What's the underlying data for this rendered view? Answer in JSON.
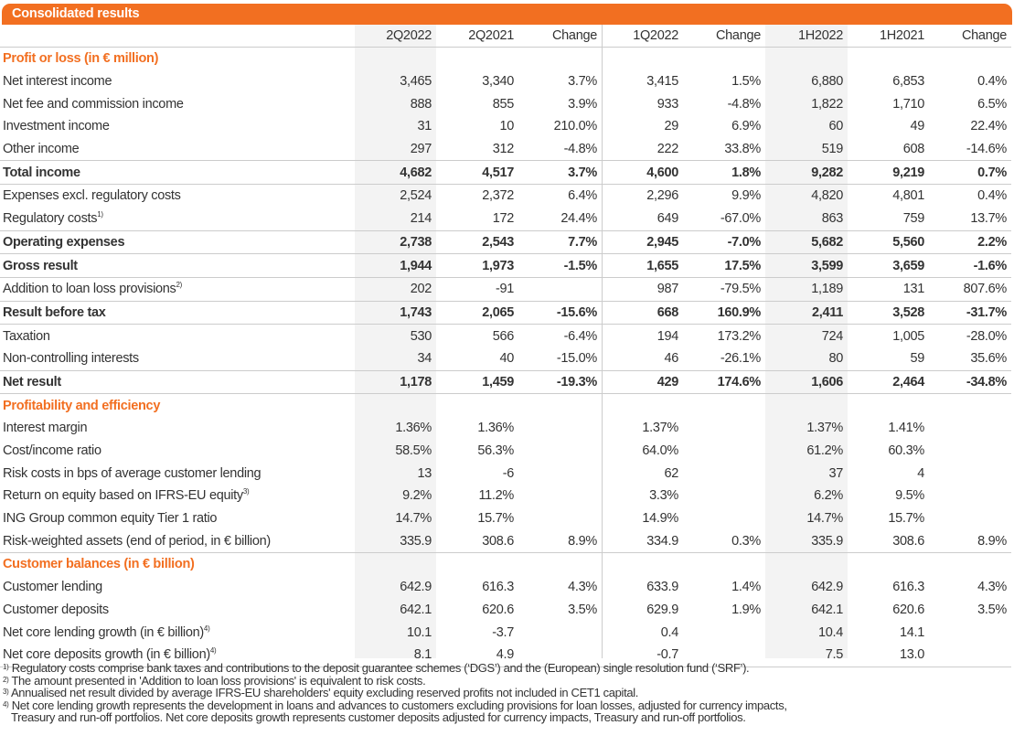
{
  "title": "Consolidated results",
  "columns": [
    "2Q2022",
    "2Q2021",
    "Change",
    "1Q2022",
    "Change",
    "1H2022",
    "1H2021",
    "Change"
  ],
  "sections": [
    {
      "title": "Profit or loss (in € million)",
      "rows": [
        {
          "label": "Net interest income",
          "values": [
            "3,465",
            "3,340",
            "3.7%",
            "3,415",
            "1.5%",
            "6,880",
            "6,853",
            "0.4%"
          ]
        },
        {
          "label": "Net fee and commission income",
          "values": [
            "888",
            "855",
            "3.9%",
            "933",
            "-4.8%",
            "1,822",
            "1,710",
            "6.5%"
          ]
        },
        {
          "label": "Investment income",
          "values": [
            "31",
            "10",
            "210.0%",
            "29",
            "6.9%",
            "60",
            "49",
            "22.4%"
          ]
        },
        {
          "label": "Other income",
          "values": [
            "297",
            "312",
            "-4.8%",
            "222",
            "33.8%",
            "519",
            "608",
            "-14.6%"
          ]
        },
        {
          "label": "Total income",
          "values": [
            "4,682",
            "4,517",
            "3.7%",
            "4,600",
            "1.8%",
            "9,282",
            "9,219",
            "0.7%"
          ]
        },
        {
          "label": "Expenses excl. regulatory costs",
          "values": [
            "2,524",
            "2,372",
            "6.4%",
            "2,296",
            "9.9%",
            "4,820",
            "4,801",
            "0.4%"
          ]
        },
        {
          "label": "Regulatory costs",
          "note": "1)",
          "values": [
            "214",
            "172",
            "24.4%",
            "649",
            "-67.0%",
            "863",
            "759",
            "13.7%"
          ]
        },
        {
          "label": "Operating expenses",
          "values": [
            "2,738",
            "2,543",
            "7.7%",
            "2,945",
            "-7.0%",
            "5,682",
            "5,560",
            "2.2%"
          ]
        },
        {
          "label": "Gross result",
          "values": [
            "1,944",
            "1,973",
            "-1.5%",
            "1,655",
            "17.5%",
            "3,599",
            "3,659",
            "-1.6%"
          ]
        },
        {
          "label": "Addition to loan loss provisions",
          "note": "2)",
          "values": [
            "202",
            "-91",
            "",
            "987",
            "-79.5%",
            "1,189",
            "131",
            "807.6%"
          ]
        },
        {
          "label": "Result before tax",
          "values": [
            "1,743",
            "2,065",
            "-15.6%",
            "668",
            "160.9%",
            "2,411",
            "3,528",
            "-31.7%"
          ]
        },
        {
          "label": "Taxation",
          "values": [
            "530",
            "566",
            "-6.4%",
            "194",
            "173.2%",
            "724",
            "1,005",
            "-28.0%"
          ]
        },
        {
          "label": "Non-controlling interests",
          "values": [
            "34",
            "40",
            "-15.0%",
            "46",
            "-26.1%",
            "80",
            "59",
            "35.6%"
          ]
        },
        {
          "label": "Net result",
          "values": [
            "1,178",
            "1,459",
            "-19.3%",
            "429",
            "174.6%",
            "1,606",
            "2,464",
            "-34.8%"
          ]
        }
      ]
    },
    {
      "title": "Profitability and efficiency",
      "rows": [
        {
          "label": "Interest margin",
          "values": [
            "1.36%",
            "1.36%",
            "",
            "1.37%",
            "",
            "1.37%",
            "1.41%",
            ""
          ]
        },
        {
          "label": "Cost/income ratio",
          "values": [
            "58.5%",
            "56.3%",
            "",
            "64.0%",
            "",
            "61.2%",
            "60.3%",
            ""
          ]
        },
        {
          "label": "Risk costs in bps of average customer lending",
          "values": [
            "13",
            "-6",
            "",
            "62",
            "",
            "37",
            "4",
            ""
          ]
        },
        {
          "label": "Return on equity based on IFRS-EU equity",
          "note": "3)",
          "values": [
            "9.2%",
            "11.2%",
            "",
            "3.3%",
            "",
            "6.2%",
            "9.5%",
            ""
          ]
        },
        {
          "label": "ING Group common equity Tier 1 ratio",
          "values": [
            "14.7%",
            "15.7%",
            "",
            "14.9%",
            "",
            "14.7%",
            "15.7%",
            ""
          ]
        },
        {
          "label": "Risk-weighted assets (end of period, in € billion)",
          "values": [
            "335.9",
            "308.6",
            "8.9%",
            "334.9",
            "0.3%",
            "335.9",
            "308.6",
            "8.9%"
          ]
        }
      ]
    },
    {
      "title": "Customer balances (in € billion)",
      "rows": [
        {
          "label": "Customer lending",
          "values": [
            "642.9",
            "616.3",
            "4.3%",
            "633.9",
            "1.4%",
            "642.9",
            "616.3",
            "4.3%"
          ]
        },
        {
          "label": "Customer deposits",
          "values": [
            "642.1",
            "620.6",
            "3.5%",
            "629.9",
            "1.9%",
            "642.1",
            "620.6",
            "3.5%"
          ]
        },
        {
          "label": "Net core lending growth (in € billion)",
          "note": "4)",
          "values": [
            "10.1",
            "-3.7",
            "",
            "0.4",
            "",
            "10.4",
            "14.1",
            ""
          ]
        },
        {
          "label": "Net core deposits growth (in € billion)",
          "note": "4)",
          "values": [
            "8.1",
            "4.9",
            "",
            "-0.7",
            "",
            "7.5",
            "13.0",
            ""
          ]
        }
      ]
    }
  ],
  "footnotes": [
    {
      "mark": "1)",
      "text": "Regulatory costs comprise bank taxes and contributions to the deposit guarantee schemes (‘DGS’) and the (European) single resolution fund (‘SRF’)."
    },
    {
      "mark": "2)",
      "text": "The amount presented in 'Addition to loan loss provisions' is equivalent to risk costs."
    },
    {
      "mark": "3)",
      "text": "Annualised net result divided by average IFRS-EU shareholders' equity excluding reserved profits not included in CET1 capital."
    },
    {
      "mark": "4)",
      "text": "Net core lending growth represents the development in loans and advances to customers excluding provisions for loan losses, adjusted for currency impacts,",
      "text2": "Treasury and run-off portfolios. Net core deposits growth represents customer deposits adjusted for currency impacts, Treasury and run-off portfolios."
    }
  ],
  "colors": {
    "accent": "#f26f21",
    "shade": "#f3f3f3",
    "rule": "#cccccc"
  }
}
